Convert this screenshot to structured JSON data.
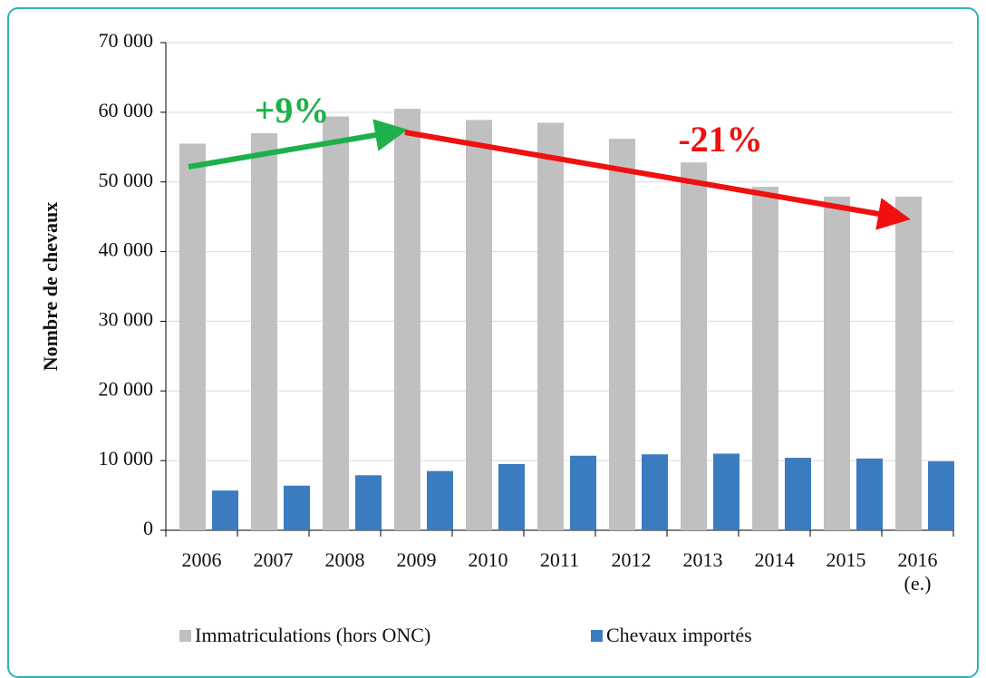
{
  "chart_data": {
    "type": "bar",
    "y_label": "Nombre de chevaux",
    "categories": [
      "2006",
      "2007",
      "2008",
      "2009",
      "2010",
      "2011",
      "2012",
      "2013",
      "2014",
      "2015",
      "2016 (e.)"
    ],
    "series": [
      {
        "name": "Immatriculations (hors ONC)",
        "color": "#c0c0c0",
        "values": [
          55500,
          57000,
          59400,
          60500,
          58900,
          58500,
          56200,
          52800,
          49300,
          47900,
          47900
        ]
      },
      {
        "name": "Chevaux importés",
        "color": "#3b7cc1",
        "values": [
          5700,
          6400,
          7900,
          8500,
          9500,
          10700,
          10900,
          11000,
          10400,
          10300,
          9900
        ]
      }
    ],
    "ylim": [
      0,
      70000
    ],
    "yticks": [
      0,
      {
        "value": 10000,
        "label": "10 000"
      },
      {
        "value": 20000,
        "label": "20 000"
      },
      {
        "value": 30000,
        "label": "30 000"
      },
      {
        "value": 40000,
        "label": "40 000"
      },
      {
        "value": 50000,
        "label": "50 000"
      },
      {
        "value": 60000,
        "label": "60 000"
      },
      {
        "value": 70000,
        "label": "70 000"
      }
    ],
    "grid": true,
    "annotations": [
      {
        "text": "+9%",
        "color": "#1db04b"
      },
      {
        "text": "-21%",
        "color": "#f01010"
      }
    ]
  }
}
